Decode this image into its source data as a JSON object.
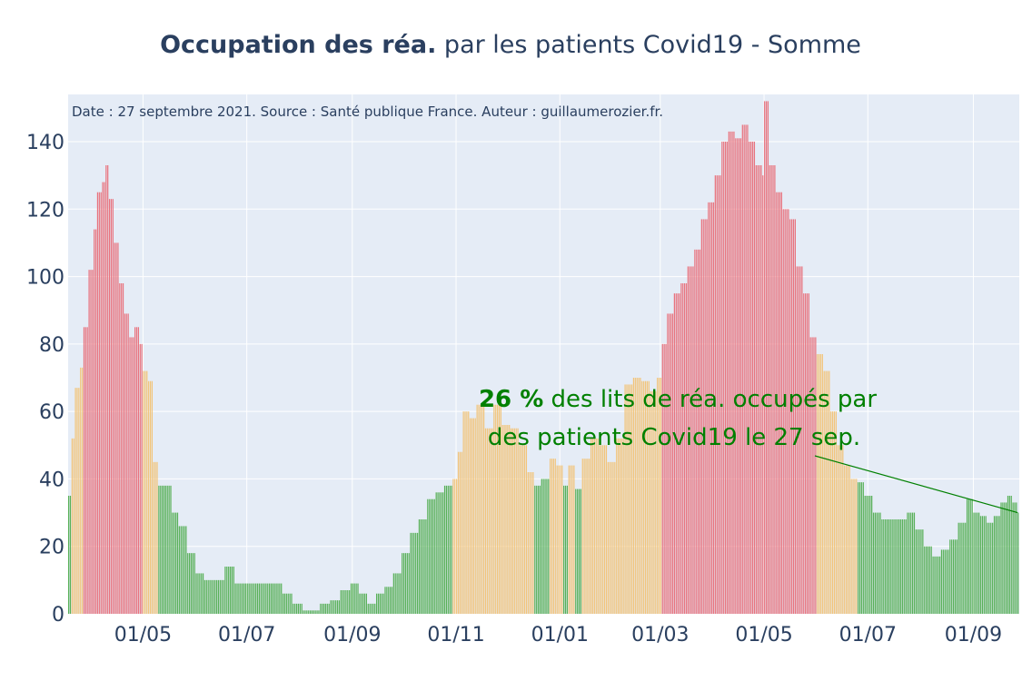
{
  "chart_data": {
    "type": "bar",
    "title_bold": "Occupation des réa.",
    "title_rest": " par les patients Covid19 - Somme",
    "subtitle": "Date : 27 septembre 2021. Source : Santé publique France. Auteur : guillaumerozier.fr.",
    "xlabel": "",
    "ylabel": "",
    "ylim": [
      0,
      154
    ],
    "yticks": [
      0,
      20,
      40,
      60,
      80,
      100,
      120,
      140
    ],
    "xlim": [
      "2020-03-18",
      "2021-09-28"
    ],
    "xticks": [
      {
        "date": "2020-05-01",
        "label": "01/05"
      },
      {
        "date": "2020-07-01",
        "label": "01/07"
      },
      {
        "date": "2020-09-01",
        "label": "01/09"
      },
      {
        "date": "2020-11-01",
        "label": "01/11"
      },
      {
        "date": "2021-01-01",
        "label": "01/01"
      },
      {
        "date": "2021-03-01",
        "label": "01/03"
      },
      {
        "date": "2021-05-01",
        "label": "01/05"
      },
      {
        "date": "2021-07-01",
        "label": "01/07"
      },
      {
        "date": "2021-09-01",
        "label": "01/09"
      }
    ],
    "grid": true,
    "color_scale": {
      "green": "#58b058",
      "orange": "#f2c47a",
      "red": "#e8737e"
    },
    "series": [
      {
        "data": [
          [
            "2020-03-18",
            35,
            "green"
          ],
          [
            "2020-03-20",
            52,
            "orange"
          ],
          [
            "2020-03-22",
            67,
            "orange"
          ],
          [
            "2020-03-25",
            73,
            "orange"
          ],
          [
            "2020-03-27",
            85,
            "red"
          ],
          [
            "2020-03-30",
            102,
            "red"
          ],
          [
            "2020-04-02",
            114,
            "red"
          ],
          [
            "2020-04-04",
            125,
            "red"
          ],
          [
            "2020-04-07",
            128,
            "red"
          ],
          [
            "2020-04-09",
            133,
            "red"
          ],
          [
            "2020-04-11",
            123,
            "red"
          ],
          [
            "2020-04-14",
            110,
            "red"
          ],
          [
            "2020-04-17",
            98,
            "red"
          ],
          [
            "2020-04-20",
            89,
            "red"
          ],
          [
            "2020-04-23",
            82,
            "red"
          ],
          [
            "2020-04-26",
            85,
            "red"
          ],
          [
            "2020-04-29",
            80,
            "red"
          ],
          [
            "2020-05-01",
            72,
            "orange"
          ],
          [
            "2020-05-04",
            69,
            "orange"
          ],
          [
            "2020-05-07",
            45,
            "orange"
          ],
          [
            "2020-05-10",
            38,
            "green"
          ],
          [
            "2020-05-14",
            38,
            "green"
          ],
          [
            "2020-05-18",
            30,
            "green"
          ],
          [
            "2020-05-22",
            26,
            "green"
          ],
          [
            "2020-05-27",
            18,
            "green"
          ],
          [
            "2020-06-01",
            12,
            "green"
          ],
          [
            "2020-06-06",
            10,
            "green"
          ],
          [
            "2020-06-12",
            10,
            "green"
          ],
          [
            "2020-06-18",
            14,
            "green"
          ],
          [
            "2020-06-24",
            9,
            "green"
          ],
          [
            "2020-07-01",
            9,
            "green"
          ],
          [
            "2020-07-08",
            9,
            "green"
          ],
          [
            "2020-07-15",
            9,
            "green"
          ],
          [
            "2020-07-22",
            6,
            "green"
          ],
          [
            "2020-07-28",
            3,
            "green"
          ],
          [
            "2020-08-03",
            1,
            "green"
          ],
          [
            "2020-08-08",
            1,
            "green"
          ],
          [
            "2020-08-13",
            3,
            "green"
          ],
          [
            "2020-08-19",
            4,
            "green"
          ],
          [
            "2020-08-25",
            7,
            "green"
          ],
          [
            "2020-08-31",
            9,
            "green"
          ],
          [
            "2020-09-05",
            6,
            "green"
          ],
          [
            "2020-09-10",
            3,
            "green"
          ],
          [
            "2020-09-15",
            6,
            "green"
          ],
          [
            "2020-09-20",
            8,
            "green"
          ],
          [
            "2020-09-25",
            12,
            "green"
          ],
          [
            "2020-09-30",
            18,
            "green"
          ],
          [
            "2020-10-05",
            24,
            "green"
          ],
          [
            "2020-10-10",
            28,
            "green"
          ],
          [
            "2020-10-15",
            34,
            "green"
          ],
          [
            "2020-10-20",
            36,
            "green"
          ],
          [
            "2020-10-25",
            38,
            "green"
          ],
          [
            "2020-10-30",
            40,
            "orange"
          ],
          [
            "2020-11-02",
            48,
            "orange"
          ],
          [
            "2020-11-05",
            60,
            "orange"
          ],
          [
            "2020-11-09",
            58,
            "orange"
          ],
          [
            "2020-11-13",
            62,
            "orange"
          ],
          [
            "2020-11-18",
            55,
            "orange"
          ],
          [
            "2020-11-23",
            62,
            "orange"
          ],
          [
            "2020-11-28",
            56,
            "orange"
          ],
          [
            "2020-12-03",
            55,
            "orange"
          ],
          [
            "2020-12-08",
            50,
            "orange"
          ],
          [
            "2020-12-13",
            42,
            "orange"
          ],
          [
            "2020-12-17",
            38,
            "green"
          ],
          [
            "2020-12-21",
            40,
            "green"
          ],
          [
            "2020-12-26",
            46,
            "orange"
          ],
          [
            "2020-12-30",
            44,
            "orange"
          ],
          [
            "2021-01-03",
            38,
            "green"
          ],
          [
            "2021-01-06",
            44,
            "orange"
          ],
          [
            "2021-01-10",
            37,
            "green"
          ],
          [
            "2021-01-14",
            46,
            "orange"
          ],
          [
            "2021-01-19",
            52,
            "orange"
          ],
          [
            "2021-01-24",
            50,
            "orange"
          ],
          [
            "2021-01-29",
            45,
            "orange"
          ],
          [
            "2021-02-03",
            52,
            "orange"
          ],
          [
            "2021-02-08",
            68,
            "orange"
          ],
          [
            "2021-02-13",
            70,
            "orange"
          ],
          [
            "2021-02-18",
            69,
            "orange"
          ],
          [
            "2021-02-23",
            66,
            "orange"
          ],
          [
            "2021-02-27",
            70,
            "orange"
          ],
          [
            "2021-03-02",
            80,
            "red"
          ],
          [
            "2021-03-05",
            89,
            "red"
          ],
          [
            "2021-03-09",
            95,
            "red"
          ],
          [
            "2021-03-13",
            98,
            "red"
          ],
          [
            "2021-03-17",
            103,
            "red"
          ],
          [
            "2021-03-21",
            108,
            "red"
          ],
          [
            "2021-03-25",
            117,
            "red"
          ],
          [
            "2021-03-29",
            122,
            "red"
          ],
          [
            "2021-04-02",
            130,
            "red"
          ],
          [
            "2021-04-06",
            140,
            "red"
          ],
          [
            "2021-04-10",
            143,
            "red"
          ],
          [
            "2021-04-14",
            141,
            "red"
          ],
          [
            "2021-04-18",
            145,
            "red"
          ],
          [
            "2021-04-22",
            140,
            "red"
          ],
          [
            "2021-04-26",
            133,
            "red"
          ],
          [
            "2021-04-30",
            130,
            "red"
          ],
          [
            "2021-05-01",
            152,
            "red"
          ],
          [
            "2021-05-04",
            133,
            "red"
          ],
          [
            "2021-05-08",
            125,
            "red"
          ],
          [
            "2021-05-12",
            120,
            "red"
          ],
          [
            "2021-05-16",
            117,
            "red"
          ],
          [
            "2021-05-20",
            103,
            "red"
          ],
          [
            "2021-05-24",
            95,
            "red"
          ],
          [
            "2021-05-28",
            82,
            "red"
          ],
          [
            "2021-06-01",
            77,
            "orange"
          ],
          [
            "2021-06-05",
            72,
            "orange"
          ],
          [
            "2021-06-09",
            60,
            "orange"
          ],
          [
            "2021-06-13",
            50,
            "orange"
          ],
          [
            "2021-06-17",
            44,
            "orange"
          ],
          [
            "2021-06-21",
            40,
            "orange"
          ],
          [
            "2021-06-25",
            39,
            "green"
          ],
          [
            "2021-06-29",
            35,
            "green"
          ],
          [
            "2021-07-04",
            30,
            "green"
          ],
          [
            "2021-07-09",
            28,
            "green"
          ],
          [
            "2021-07-14",
            28,
            "green"
          ],
          [
            "2021-07-19",
            28,
            "green"
          ],
          [
            "2021-07-24",
            30,
            "green"
          ],
          [
            "2021-07-29",
            25,
            "green"
          ],
          [
            "2021-08-03",
            20,
            "green"
          ],
          [
            "2021-08-08",
            17,
            "green"
          ],
          [
            "2021-08-13",
            19,
            "green"
          ],
          [
            "2021-08-18",
            22,
            "green"
          ],
          [
            "2021-08-23",
            27,
            "green"
          ],
          [
            "2021-08-28",
            34,
            "green"
          ],
          [
            "2021-09-01",
            30,
            "green"
          ],
          [
            "2021-09-05",
            29,
            "green"
          ],
          [
            "2021-09-09",
            27,
            "green"
          ],
          [
            "2021-09-13",
            29,
            "green"
          ],
          [
            "2021-09-17",
            33,
            "green"
          ],
          [
            "2021-09-21",
            35,
            "green"
          ],
          [
            "2021-09-24",
            33,
            "green"
          ],
          [
            "2021-09-27",
            30,
            "green"
          ]
        ]
      }
    ],
    "annotation": {
      "value": "26",
      "unit": " %",
      "line1_rest": " des lits de réa. occupés par",
      "line2": "des patients Covid19 le 27 sep.",
      "target_date": "2021-09-27",
      "target_value": 30
    }
  }
}
